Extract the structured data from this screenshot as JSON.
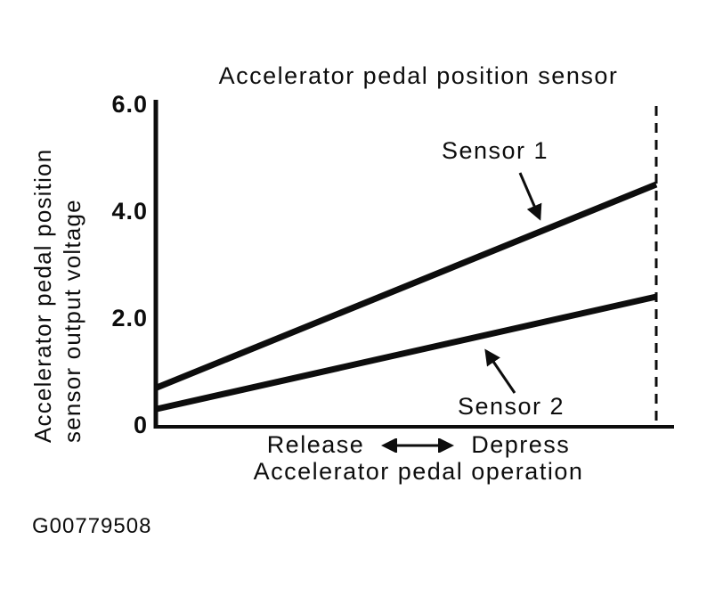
{
  "figure_id": "G00779508",
  "chart_data": {
    "type": "line",
    "title": "Accelerator pedal position sensor",
    "xlabel": "Accelerator pedal operation",
    "x_direction_labels": {
      "left": "Release",
      "right": "Depress"
    },
    "ylabel": "Accelerator pedal position sensor output voltage",
    "ylabel_lines": [
      "Accelerator pedal position",
      "sensor output voltage"
    ],
    "ylim": [
      0,
      6.0
    ],
    "y_ticks": [
      {
        "label": "6.0",
        "value": 6.0
      },
      {
        "label": "4.0",
        "value": 4.0
      },
      {
        "label": "2.0",
        "value": 2.0
      },
      {
        "label": "0",
        "value": 0
      }
    ],
    "x": [
      "Release (pedal fully released)",
      "Depress (pedal fully depressed)"
    ],
    "series": [
      {
        "name": "Sensor 1",
        "values": [
          0.7,
          4.5
        ]
      },
      {
        "name": "Sensor 2",
        "values": [
          0.3,
          2.4
        ]
      }
    ],
    "annotations": [
      {
        "type": "dashed-vertical-line",
        "meaning": "full depress limit at right end of pedal travel"
      }
    ],
    "grid": false,
    "legend_position": "inline labels with pointer arrows",
    "colors": {
      "ink": "#0d0d0d",
      "background": "#ffffff"
    }
  }
}
